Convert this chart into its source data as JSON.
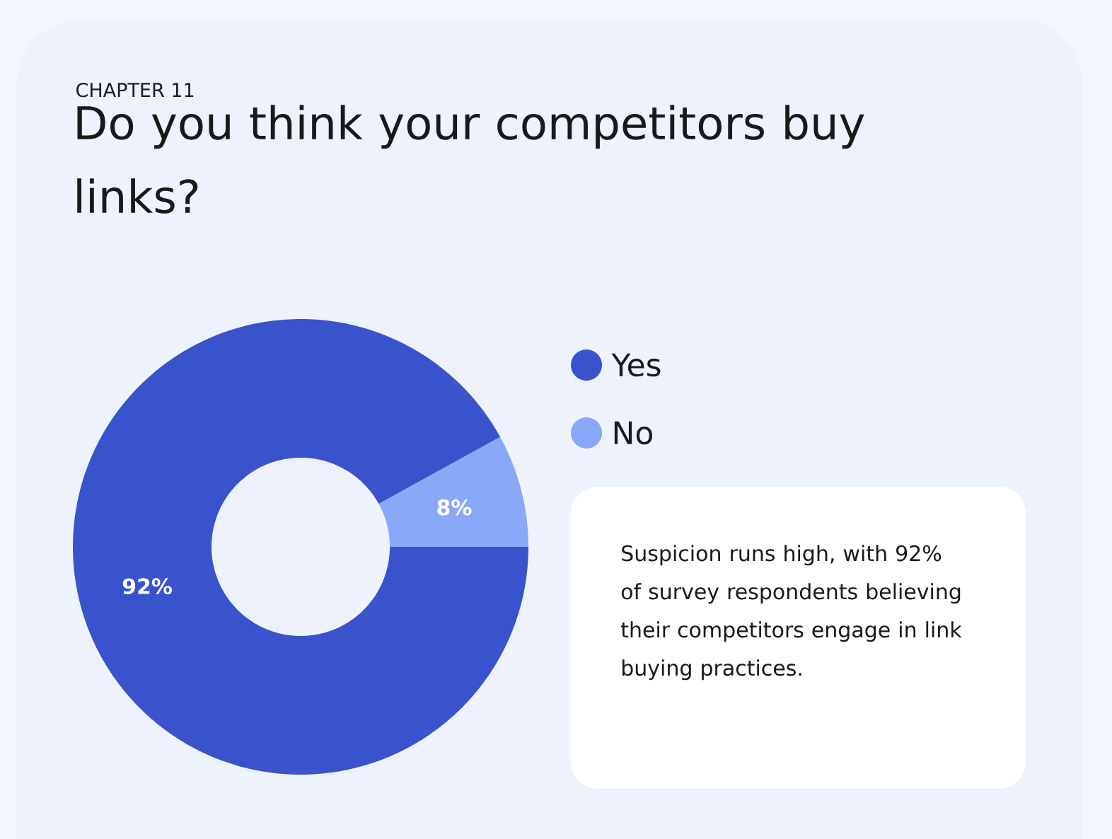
{
  "chart_data": {
    "type": "donut",
    "subtitle": "CHAPTER 11",
    "title": "Do you think your competitors buy links?",
    "categories": [
      "Yes",
      "No"
    ],
    "values": [
      92,
      8
    ],
    "colors": [
      "#3953cd",
      "#89a8f7"
    ],
    "value_labels": [
      "92%",
      "8%"
    ],
    "legend": "right",
    "annotations": [
      "Suspicion runs high, with 92% of survey respondents believing their competitors engage in link buying practices."
    ]
  }
}
